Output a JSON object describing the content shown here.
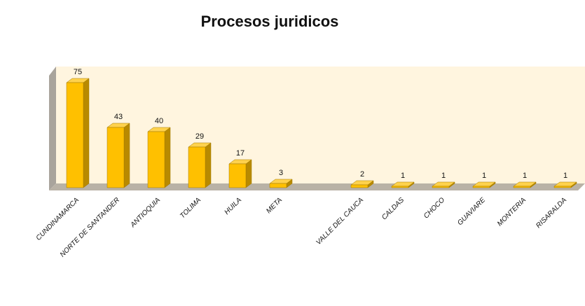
{
  "chart_data": {
    "type": "bar3d",
    "title": "Procesos juridicos",
    "categories": [
      "CUNDINAMARCA",
      "NORTE DE SANTANDER",
      "ANTIOQUIA",
      "TOLIMA",
      "HUILA",
      "META",
      null,
      "VALLE DEL CAUCA",
      "CALDAS",
      "CHOCO",
      "GUAVIARE",
      "MONTERIA",
      "RISARALDA"
    ],
    "values": [
      75,
      43,
      40,
      29,
      17,
      3,
      null,
      2,
      1,
      1,
      1,
      1,
      1
    ],
    "color": "#FFC000"
  }
}
